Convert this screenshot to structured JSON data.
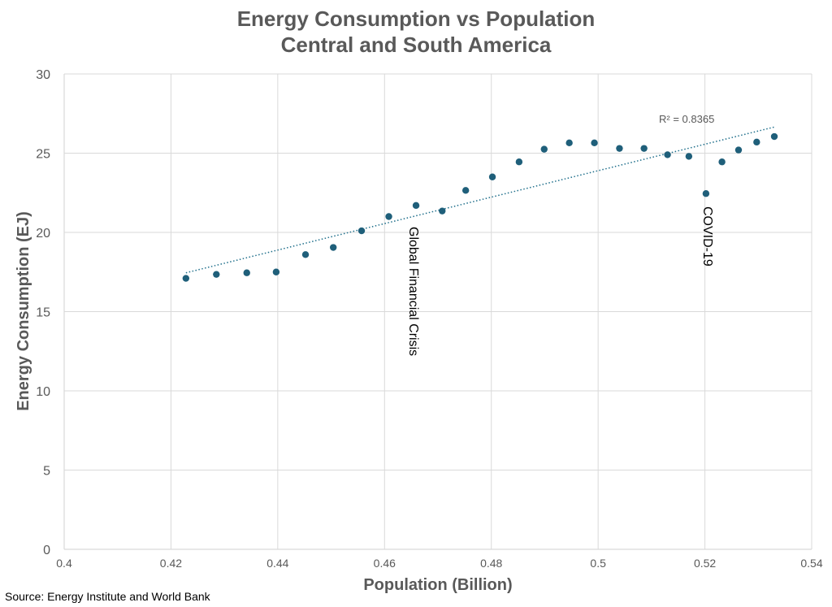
{
  "colors": {
    "marker": "#1f5f7a",
    "trendline": "#1f6f8b",
    "grid": "#d9d9d9",
    "text": "#595959"
  },
  "chart_data": {
    "type": "scatter",
    "title": "Energy Consumption vs Population",
    "subtitle": "Central and South America",
    "xlabel": "Population (Billion)",
    "ylabel": "Energy Consumption (EJ)",
    "xlim": [
      0.4,
      0.54
    ],
    "ylim": [
      0,
      30
    ],
    "x_ticks": [
      0.4,
      0.42,
      0.44,
      0.46,
      0.48,
      0.5,
      0.52,
      0.54
    ],
    "x_tick_labels": [
      "0.4",
      "0.42",
      "0.44",
      "0.46",
      "0.48",
      "0.5",
      "0.52",
      "0.54"
    ],
    "y_ticks": [
      0,
      5,
      10,
      15,
      20,
      25,
      30
    ],
    "y_tick_labels": [
      "0",
      "5",
      "10",
      "15",
      "20",
      "25",
      "30"
    ],
    "grid": true,
    "series": [
      {
        "name": "Energy Consumption",
        "x": [
          0.4228,
          0.4285,
          0.4342,
          0.4397,
          0.4452,
          0.4504,
          0.4557,
          0.4608,
          0.4659,
          0.4708,
          0.4752,
          0.4802,
          0.4852,
          0.4899,
          0.4946,
          0.4993,
          0.504,
          0.5086,
          0.513,
          0.517,
          0.5202,
          0.5232,
          0.5263,
          0.5297,
          0.533
        ],
        "y": [
          17.1,
          17.35,
          17.45,
          17.5,
          18.6,
          19.05,
          20.1,
          21.0,
          21.7,
          21.35,
          22.65,
          23.5,
          24.45,
          25.25,
          25.65,
          25.65,
          25.3,
          25.3,
          24.9,
          24.8,
          22.45,
          24.45,
          25.2,
          25.7,
          26.05
        ]
      }
    ],
    "trendline": {
      "type": "linear",
      "x_start": 0.4228,
      "y_start": 17.45,
      "x_end": 0.533,
      "y_end": 26.65,
      "r_squared_label": "R² = 0.8365"
    },
    "annotations": [
      {
        "text": "Global Financial Crisis",
        "x": 0.4659,
        "y": 20.8,
        "orientation": "vertical"
      },
      {
        "text": "COVID-19",
        "x": 0.5202,
        "y": 21.5,
        "orientation": "vertical"
      }
    ],
    "source": "Source: Energy Institute and World Bank"
  }
}
